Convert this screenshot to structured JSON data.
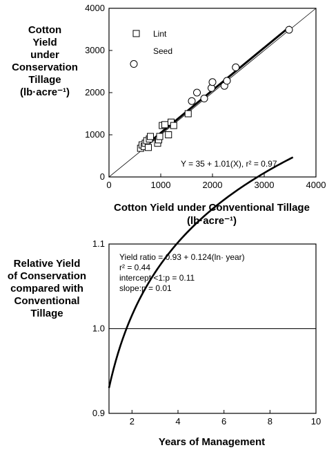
{
  "chart_data": [
    {
      "type": "scatter",
      "ylabel_lines": [
        "Cotton",
        "Yield",
        "under",
        "Conservation",
        "Tillage",
        "(lb·acre⁻¹)"
      ],
      "xlabel_lines": [
        "Cotton Yield under Conventional Tillage",
        "(lb·acre⁻¹)"
      ],
      "xlim": [
        0,
        4000
      ],
      "ylim": [
        0,
        4000
      ],
      "xticks": [
        "0",
        "1000",
        "2000",
        "3000",
        "4000"
      ],
      "yticks": [
        "0",
        "1000",
        "2000",
        "3000",
        "4000"
      ],
      "legend": {
        "placement": "top-left",
        "entries": [
          "Lint",
          "Seed"
        ]
      },
      "series": [
        {
          "name": "Lint",
          "marker": "square",
          "points": [
            [
              610,
              680
            ],
            [
              640,
              760
            ],
            [
              680,
              720
            ],
            [
              700,
              800
            ],
            [
              730,
              860
            ],
            [
              760,
              700
            ],
            [
              780,
              900
            ],
            [
              800,
              960
            ],
            [
              940,
              800
            ],
            [
              960,
              880
            ],
            [
              980,
              960
            ],
            [
              1030,
              1220
            ],
            [
              1080,
              1240
            ],
            [
              1150,
              1000
            ],
            [
              1200,
              1300
            ],
            [
              1250,
              1220
            ],
            [
              1530,
              1500
            ]
          ]
        },
        {
          "name": "Seed",
          "marker": "circle",
          "points": [
            [
              480,
              2680
            ],
            [
              1600,
              1800
            ],
            [
              1700,
              2000
            ],
            [
              1840,
              1860
            ],
            [
              1980,
              2110
            ],
            [
              2000,
              2250
            ],
            [
              2230,
              2160
            ],
            [
              2280,
              2280
            ],
            [
              2450,
              2600
            ],
            [
              3480,
              3490
            ]
          ]
        }
      ],
      "reference_line": {
        "x": [
          0,
          4000
        ],
        "y": [
          0,
          4000
        ]
      },
      "fit": {
        "intercept": 35,
        "slope": 1.01,
        "x_range": [
          600,
          3500
        ]
      },
      "annotation": "Y = 35 + 1.01(X), r² = 0.97"
    },
    {
      "type": "line",
      "ylabel_lines": [
        "Relative Yield",
        "of Conservation",
        "compared with",
        "Conventional",
        "Tillage"
      ],
      "xlabel": "Years of Management",
      "xlim": [
        1,
        10
      ],
      "ylim": [
        0.9,
        1.1
      ],
      "xticks": [
        "2",
        "4",
        "6",
        "8",
        "10"
      ],
      "yticks": [
        "0.9",
        "1.0",
        "1.1"
      ],
      "reference_line": {
        "y": 1.0
      },
      "curve": {
        "intercept": 0.93,
        "coef": 0.124,
        "x_range": [
          1,
          9
        ]
      },
      "annotation_lines": [
        "Yield ratio = 0.93 + 0.124(ln· year)",
        "r² = 0.44",
        "intercept <1:p = 0.11",
        "slope:p = 0.01"
      ]
    }
  ]
}
